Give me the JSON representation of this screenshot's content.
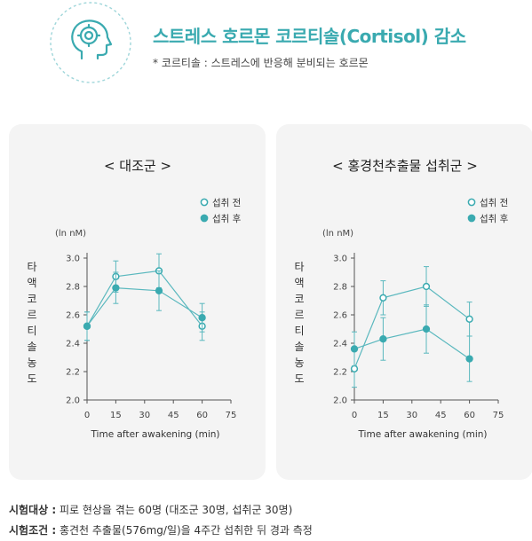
{
  "header": {
    "title": "스트레스 호르몬 코르티솔(Cortisol) 감소",
    "subtitle": "* 코르티솔 : 스트레스에 반응해 분비되는 호르몬",
    "icon": "head-brain-icon"
  },
  "colors": {
    "accent": "#3aaab0",
    "line": "#5ab8be",
    "panel_bg": "#f4f4f4",
    "axis": "#555555",
    "tick_text": "#444444"
  },
  "chart_data": [
    {
      "type": "line",
      "title": "< 대조군 >",
      "ylabel": "타액코르티솔농도",
      "yunit": "(ln nM)",
      "xlabel": "Time after awakening (min)",
      "x_ticks": [
        0,
        15,
        30,
        45,
        60,
        75
      ],
      "y_ticks": [
        "2.0",
        "2.2",
        "2.4",
        "2.6",
        "2.8",
        "3.0"
      ],
      "xlim": [
        0,
        75
      ],
      "ylim": [
        2.0,
        3.0
      ],
      "legend": [
        "섭취 전",
        "섭취 후"
      ],
      "legend_position": "top-right",
      "series": [
        {
          "name": "섭취 전",
          "marker": "open-circle",
          "x": [
            0,
            15,
            37.5,
            60
          ],
          "y": [
            2.52,
            2.87,
            2.91,
            2.52
          ],
          "err": [
            0.1,
            0.11,
            0.12,
            0.1
          ]
        },
        {
          "name": "섭취 후",
          "marker": "filled-circle",
          "x": [
            0,
            15,
            37.5,
            60
          ],
          "y": [
            2.52,
            2.79,
            2.77,
            2.58
          ],
          "err": [
            0.1,
            0.11,
            0.14,
            0.1
          ]
        }
      ]
    },
    {
      "type": "line",
      "title": "< 홍경천추출물 섭취군 >",
      "ylabel": "타액코르티솔농도",
      "yunit": "(ln nM)",
      "xlabel": "Time after awakening (min)",
      "x_ticks": [
        0,
        15,
        30,
        45,
        60,
        75
      ],
      "y_ticks": [
        "2.0",
        "2.2",
        "2.4",
        "2.6",
        "2.8",
        "3.0"
      ],
      "xlim": [
        0,
        75
      ],
      "ylim": [
        2.0,
        3.0
      ],
      "legend": [
        "섭취 전",
        "섭취 후"
      ],
      "legend_position": "top-right",
      "series": [
        {
          "name": "섭취 전",
          "marker": "open-circle",
          "x": [
            0,
            15,
            37.5,
            60
          ],
          "y": [
            2.22,
            2.72,
            2.8,
            2.57
          ],
          "err": [
            0.13,
            0.12,
            0.14,
            0.12
          ]
        },
        {
          "name": "섭취 후",
          "marker": "filled-circle",
          "x": [
            0,
            15,
            37.5,
            60
          ],
          "y": [
            2.36,
            2.43,
            2.5,
            2.29
          ],
          "err": [
            0.12,
            0.15,
            0.17,
            0.16
          ]
        }
      ]
    }
  ],
  "footer": {
    "line1_key": "시험대상 :",
    "line1_value": " 피로 현상을 겪는 60명 (대조군 30명, 섭취군 30명)",
    "line2_key": "시험조건 :",
    "line2_value": " 홍견천 추출물(576mg/일)을 4주간 섭취한 뒤 경과 측정"
  }
}
